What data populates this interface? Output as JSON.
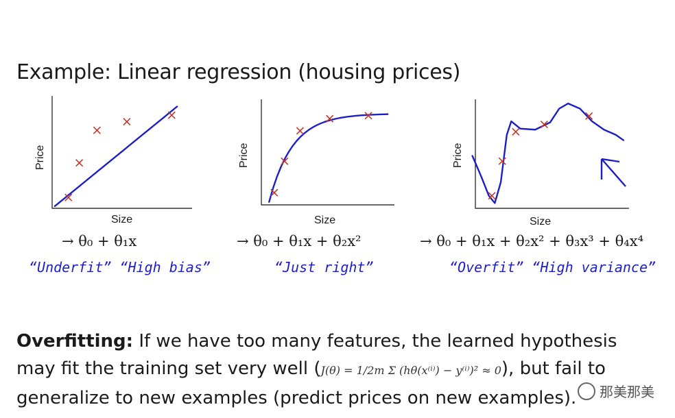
{
  "title": "Example: Linear regression (housing prices)",
  "chart_data": [
    {
      "type": "scatter",
      "xlabel": "Size",
      "ylabel": "Price",
      "points": [
        [
          0.12,
          0.1
        ],
        [
          0.2,
          0.42
        ],
        [
          0.33,
          0.72
        ],
        [
          0.55,
          0.8
        ],
        [
          0.88,
          0.86
        ]
      ],
      "fit": "linear",
      "formula": "→ θ₀ + θ₁x",
      "annotation": "“Underfit”  “High bias”"
    },
    {
      "type": "scatter",
      "xlabel": "Size",
      "ylabel": "Price",
      "points": [
        [
          0.1,
          0.12
        ],
        [
          0.18,
          0.43
        ],
        [
          0.3,
          0.73
        ],
        [
          0.53,
          0.85
        ],
        [
          0.83,
          0.88
        ]
      ],
      "fit": "quadratic",
      "formula": "→ θ₀ + θ₁x + θ₂x²",
      "annotation": "“Just right”"
    },
    {
      "type": "scatter",
      "xlabel": "Size",
      "ylabel": "Price",
      "points": [
        [
          0.11,
          0.12
        ],
        [
          0.18,
          0.45
        ],
        [
          0.27,
          0.73
        ],
        [
          0.46,
          0.8
        ],
        [
          0.76,
          0.88
        ]
      ],
      "fit": "quartic",
      "formula": "→ θ₀ + θ₁x + θ₂x² + θ₃x³ + θ₄x⁴",
      "annotation": "“Overfit”  “High variance”"
    }
  ],
  "overfitting": {
    "heading": "Overfitting:",
    "text1": " If we have too many features, the learned hypothesis may fit the training set very well (",
    "equation": "J(θ) = 1/2m Σ (hθ(x⁽ⁱ⁾) − y⁽ⁱ⁾)² ≈ 0",
    "text2": "), but fail to generalize to new examples (predict prices on new examples)."
  },
  "watermark": "那美那美",
  "colors": {
    "marker": "#c0392b",
    "ink": "#1d1fc6"
  }
}
